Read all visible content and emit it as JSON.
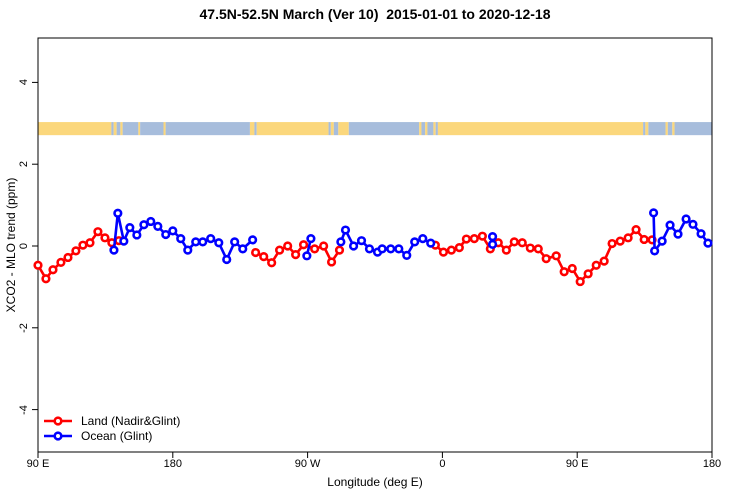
{
  "title": "47.5N-52.5N March (Ver 10)  2015-01-01 to 2020-12-18",
  "colors": {
    "land": "#ff0000",
    "ocean": "#0000ff",
    "land_band": "#fbd77c",
    "ocean_band": "#a7bddc",
    "axis": "#000000"
  },
  "chart_data": {
    "type": "line",
    "title": "47.5N-52.5N March (Ver 10)  2015-01-01 to 2020-12-18",
    "xlabel": "Longitude (deg E)",
    "ylabel": "XCO2 - MLO trend (ppm)",
    "xlim": [
      90,
      540
    ],
    "ylim": [
      -5,
      5.1
    ],
    "grid": false,
    "legend_position": "bottom-left",
    "x_ticks": [
      {
        "lon": 90,
        "label": "90 E"
      },
      {
        "lon": 180,
        "label": "180"
      },
      {
        "lon": 270,
        "label": "90 W"
      },
      {
        "lon": 360,
        "label": "0"
      },
      {
        "lon": 450,
        "label": "90 E"
      },
      {
        "lon": 540,
        "label": "180"
      }
    ],
    "y_ticks": [
      {
        "value": -4,
        "label": "-4"
      },
      {
        "value": -2,
        "label": "-2"
      },
      {
        "value": 0,
        "label": "0"
      },
      {
        "value": 2,
        "label": "2"
      },
      {
        "value": 4,
        "label": "4"
      }
    ],
    "surface_band": {
      "value_top": 3.03,
      "value_bottom": 2.71,
      "segments": [
        [
          90,
          139,
          "land"
        ],
        [
          139,
          140.5,
          "ocean"
        ],
        [
          140.5,
          142.5,
          "land"
        ],
        [
          142.5,
          145,
          "ocean"
        ],
        [
          145,
          146.5,
          "land"
        ],
        [
          146.5,
          157,
          "ocean"
        ],
        [
          157,
          158.2,
          "land"
        ],
        [
          158.2,
          173.8,
          "ocean"
        ],
        [
          173.8,
          175.2,
          "land"
        ],
        [
          175.2,
          231.5,
          "ocean"
        ],
        [
          231.5,
          234.5,
          "land"
        ],
        [
          234.5,
          236,
          "ocean"
        ],
        [
          236,
          284,
          "land"
        ],
        [
          284,
          285.5,
          "ocean"
        ],
        [
          285.5,
          287.5,
          "land"
        ],
        [
          287.5,
          290.5,
          "ocean"
        ],
        [
          290.5,
          297.5,
          "land"
        ],
        [
          297.5,
          344.5,
          "ocean"
        ],
        [
          344.5,
          346,
          "land"
        ],
        [
          346,
          348.5,
          "ocean"
        ],
        [
          348.5,
          350,
          "land"
        ],
        [
          350,
          354,
          "ocean"
        ],
        [
          354,
          355.5,
          "land"
        ],
        [
          355.5,
          357,
          "ocean"
        ],
        [
          357,
          494,
          "land"
        ],
        [
          494,
          495.5,
          "ocean"
        ],
        [
          495.5,
          497.5,
          "land"
        ],
        [
          497.5,
          509,
          "ocean"
        ],
        [
          509,
          510.5,
          "land"
        ],
        [
          510.5,
          513.5,
          "ocean"
        ],
        [
          513.5,
          515,
          "land"
        ],
        [
          515,
          540,
          "ocean"
        ]
      ]
    },
    "series": [
      {
        "name": "Land (Nadir&Glint)",
        "color_key": "land",
        "segments": [
          [
            [
              90,
              -0.47
            ],
            [
              95.3,
              -0.8
            ],
            [
              100,
              -0.58
            ],
            [
              105.3,
              -0.4
            ],
            [
              110,
              -0.28
            ],
            [
              115.3,
              -0.12
            ],
            [
              120,
              0.02
            ],
            [
              124.7,
              0.08
            ],
            [
              130,
              0.35
            ],
            [
              134.7,
              0.2
            ],
            [
              139.3,
              0.08
            ],
            [
              144,
              0.13
            ]
          ],
          [
            [
              235.3,
              -0.16
            ],
            [
              240.7,
              -0.26
            ],
            [
              246,
              -0.41
            ],
            [
              251.3,
              -0.1
            ],
            [
              256.7,
              0.0
            ],
            [
              262,
              -0.21
            ],
            [
              267.3,
              0.03
            ],
            [
              274.7,
              -0.07
            ],
            [
              280.7,
              0.0
            ],
            [
              286,
              -0.39
            ],
            [
              291.3,
              -0.1
            ]
          ],
          [
            [
              355.3,
              0.02
            ],
            [
              360.7,
              -0.15
            ],
            [
              366,
              -0.1
            ],
            [
              371.3,
              -0.04
            ],
            [
              376,
              0.17
            ],
            [
              381.3,
              0.18
            ],
            [
              386.7,
              0.24
            ],
            [
              392,
              -0.07
            ],
            [
              397.3,
              0.08
            ],
            [
              402.7,
              -0.1
            ],
            [
              408,
              0.1
            ],
            [
              413.3,
              0.08
            ],
            [
              418.7,
              -0.05
            ],
            [
              424,
              -0.07
            ],
            [
              429.3,
              -0.31
            ],
            [
              436,
              -0.24
            ],
            [
              441.3,
              -0.63
            ],
            [
              446.7,
              -0.55
            ],
            [
              452,
              -0.87
            ],
            [
              457.3,
              -0.68
            ],
            [
              462.7,
              -0.47
            ],
            [
              468,
              -0.37
            ],
            [
              473.3,
              0.06
            ],
            [
              478.7,
              0.12
            ],
            [
              484,
              0.2
            ],
            [
              489.3,
              0.4
            ],
            [
              494.7,
              0.16
            ],
            [
              500,
              0.15
            ]
          ]
        ]
      },
      {
        "name": "Ocean (Glint)",
        "color_key": "ocean",
        "segments": [
          [
            [
              140.7,
              -0.1
            ],
            [
              143.3,
              0.8
            ],
            [
              147.3,
              0.12
            ],
            [
              151.3,
              0.45
            ],
            [
              156,
              0.27
            ],
            [
              160.7,
              0.52
            ],
            [
              165.3,
              0.6
            ],
            [
              170,
              0.48
            ],
            [
              175.3,
              0.28
            ],
            [
              180,
              0.37
            ],
            [
              185.3,
              0.18
            ],
            [
              190,
              -0.1
            ],
            [
              195.3,
              0.1
            ],
            [
              200,
              0.1
            ],
            [
              205.3,
              0.18
            ],
            [
              210.7,
              0.08
            ],
            [
              216,
              -0.33
            ],
            [
              221.3,
              0.1
            ],
            [
              226.7,
              -0.07
            ],
            [
              233.3,
              0.15
            ]
          ],
          [
            [
              269.5,
              -0.24
            ],
            [
              272.2,
              0.18
            ]
          ],
          [
            [
              292.2,
              0.1
            ],
            [
              295.3,
              0.39
            ],
            [
              300.7,
              0.0
            ],
            [
              306,
              0.13
            ],
            [
              311.3,
              -0.07
            ],
            [
              316.7,
              -0.15
            ],
            [
              319.8,
              -0.07
            ],
            [
              325.5,
              -0.07
            ],
            [
              330.9,
              -0.07
            ],
            [
              336.2,
              -0.23
            ],
            [
              341.5,
              0.1
            ],
            [
              346.9,
              0.18
            ],
            [
              352.2,
              0.07
            ]
          ],
          [
            [
              393.5,
              0.23
            ],
            [
              393.5,
              0.04
            ]
          ],
          [
            [
              501,
              0.81
            ],
            [
              501.7,
              -0.12
            ],
            [
              506.7,
              0.12
            ],
            [
              512,
              0.51
            ],
            [
              517.3,
              0.29
            ],
            [
              522.7,
              0.66
            ],
            [
              527.3,
              0.53
            ],
            [
              532.7,
              0.3
            ],
            [
              537.3,
              0.07
            ]
          ]
        ]
      }
    ],
    "legend": {
      "items": [
        "Land (Nadir&Glint)",
        "Ocean (Glint)"
      ]
    }
  }
}
